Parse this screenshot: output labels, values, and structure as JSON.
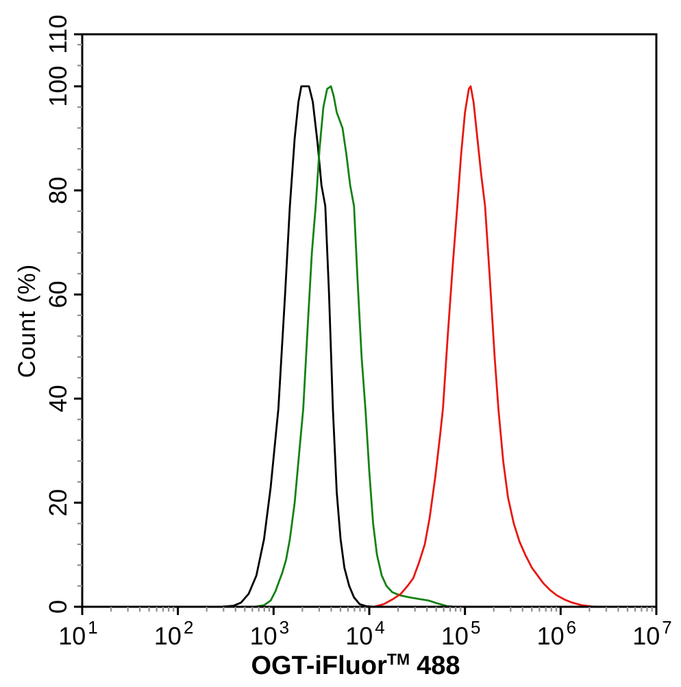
{
  "chart_data": {
    "type": "line",
    "title": "",
    "xlabel": "OGT-iFluor™ 488",
    "xlabel_parts": {
      "main": "OGT-iFluor",
      "sup": "TM",
      "tail": "488"
    },
    "ylabel": "Count (%)",
    "x_scale": "log10",
    "x_tick_exponents": [
      1,
      2,
      3,
      4,
      5,
      6,
      7
    ],
    "x_tick_base": "10",
    "x_minor_ticks_per_decade": [
      2,
      3,
      4,
      5,
      6,
      7,
      8,
      9
    ],
    "ylim": [
      0,
      110
    ],
    "y_tick_labels": [
      0,
      20,
      40,
      60,
      80,
      100,
      110
    ],
    "y_minor_step": 4,
    "grid": "off",
    "legend": "none",
    "colors": {
      "axis": "#000000",
      "minor_tick": "#8f8f8f",
      "background": "#ffffff"
    },
    "series": [
      {
        "name": "black",
        "color": "#000000",
        "peak_x_log10": 3.33,
        "peak_percent": 100,
        "points": [
          [
            1.0,
            0
          ],
          [
            2.45,
            0
          ],
          [
            2.58,
            0.2
          ],
          [
            2.66,
            0.8
          ],
          [
            2.74,
            2.5
          ],
          [
            2.82,
            6
          ],
          [
            2.9,
            13
          ],
          [
            2.97,
            23
          ],
          [
            3.05,
            38
          ],
          [
            3.12,
            60
          ],
          [
            3.17,
            77
          ],
          [
            3.22,
            90
          ],
          [
            3.26,
            97
          ],
          [
            3.29,
            100
          ],
          [
            3.37,
            100
          ],
          [
            3.41,
            97
          ],
          [
            3.46,
            89
          ],
          [
            3.5,
            81
          ],
          [
            3.54,
            77
          ],
          [
            3.58,
            60
          ],
          [
            3.62,
            38
          ],
          [
            3.66,
            22
          ],
          [
            3.7,
            13
          ],
          [
            3.74,
            7.5
          ],
          [
            3.79,
            4
          ],
          [
            3.84,
            1.8
          ],
          [
            3.9,
            0.5
          ],
          [
            3.97,
            0.1
          ],
          [
            4.05,
            0
          ],
          [
            7.0,
            0
          ]
        ]
      },
      {
        "name": "green",
        "color": "#148214",
        "peak_x_log10": 3.59,
        "peak_percent": 100,
        "points": [
          [
            1.0,
            0
          ],
          [
            2.8,
            0
          ],
          [
            2.9,
            0.3
          ],
          [
            2.97,
            1.2
          ],
          [
            3.02,
            3
          ],
          [
            3.06,
            5
          ],
          [
            3.09,
            6.5
          ],
          [
            3.13,
            9
          ],
          [
            3.17,
            13
          ],
          [
            3.22,
            20
          ],
          [
            3.27,
            30
          ],
          [
            3.31,
            38
          ],
          [
            3.36,
            55
          ],
          [
            3.4,
            68
          ],
          [
            3.44,
            77
          ],
          [
            3.48,
            88
          ],
          [
            3.52,
            96
          ],
          [
            3.56,
            99.5
          ],
          [
            3.6,
            100
          ],
          [
            3.63,
            98
          ],
          [
            3.66,
            95
          ],
          [
            3.69,
            93.5
          ],
          [
            3.72,
            92
          ],
          [
            3.76,
            87
          ],
          [
            3.8,
            81
          ],
          [
            3.84,
            77
          ],
          [
            3.88,
            62
          ],
          [
            3.92,
            48
          ],
          [
            3.96,
            38
          ],
          [
            4.0,
            26
          ],
          [
            4.04,
            16
          ],
          [
            4.08,
            10
          ],
          [
            4.13,
            6
          ],
          [
            4.18,
            4
          ],
          [
            4.24,
            2.8
          ],
          [
            4.32,
            2.2
          ],
          [
            4.42,
            1.8
          ],
          [
            4.52,
            1.5
          ],
          [
            4.62,
            1.2
          ],
          [
            4.72,
            0.6
          ],
          [
            4.82,
            0.1
          ],
          [
            4.9,
            0
          ],
          [
            7.0,
            0
          ]
        ]
      },
      {
        "name": "red",
        "color": "#e81710",
        "peak_x_log10": 5.06,
        "peak_percent": 100,
        "points": [
          [
            1.0,
            0
          ],
          [
            4.05,
            0
          ],
          [
            4.15,
            0.5
          ],
          [
            4.25,
            1.5
          ],
          [
            4.33,
            2.5
          ],
          [
            4.4,
            4
          ],
          [
            4.46,
            5.5
          ],
          [
            4.52,
            8.5
          ],
          [
            4.58,
            12
          ],
          [
            4.63,
            17
          ],
          [
            4.69,
            25
          ],
          [
            4.74,
            33
          ],
          [
            4.77,
            38
          ],
          [
            4.82,
            52
          ],
          [
            4.87,
            65
          ],
          [
            4.92,
            77
          ],
          [
            4.96,
            87
          ],
          [
            5.0,
            95
          ],
          [
            5.04,
            99.5
          ],
          [
            5.06,
            100
          ],
          [
            5.09,
            97
          ],
          [
            5.13,
            90
          ],
          [
            5.17,
            83
          ],
          [
            5.21,
            77
          ],
          [
            5.26,
            63
          ],
          [
            5.31,
            48
          ],
          [
            5.35,
            38
          ],
          [
            5.4,
            28
          ],
          [
            5.45,
            21
          ],
          [
            5.51,
            16
          ],
          [
            5.57,
            12.5
          ],
          [
            5.63,
            10
          ],
          [
            5.7,
            7.5
          ],
          [
            5.76,
            6
          ],
          [
            5.82,
            4.5
          ],
          [
            5.89,
            3.2
          ],
          [
            5.96,
            2.2
          ],
          [
            6.04,
            1.4
          ],
          [
            6.12,
            0.8
          ],
          [
            6.22,
            0.3
          ],
          [
            6.33,
            0.05
          ],
          [
            6.42,
            0
          ],
          [
            7.0,
            0
          ]
        ]
      }
    ]
  }
}
